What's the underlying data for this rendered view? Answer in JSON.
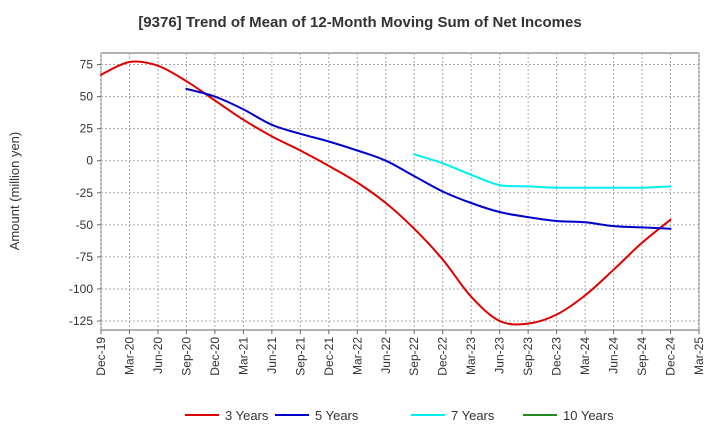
{
  "chart_data": {
    "type": "line",
    "title": "[9376]  Trend of Mean of 12-Month Moving Sum of Net Incomes",
    "ylabel": "Amount (million yen)",
    "xlabel": "",
    "ylim": [
      -132,
      84
    ],
    "yticks": [
      75,
      50,
      25,
      0,
      -25,
      -50,
      -75,
      -100,
      -125
    ],
    "xtick_labels": [
      "Dec-19",
      "Mar-20",
      "Jun-20",
      "Sep-20",
      "Dec-20",
      "Mar-21",
      "Jun-21",
      "Sep-21",
      "Dec-21",
      "Mar-22",
      "Jun-22",
      "Sep-22",
      "Dec-22",
      "Mar-23",
      "Jun-23",
      "Sep-23",
      "Dec-23",
      "Mar-24",
      "Jun-24",
      "Sep-24",
      "Dec-24",
      "Mar-25"
    ],
    "grid": true,
    "legend_position": "bottom",
    "series": [
      {
        "name": "3 Years",
        "color": "#dd0000",
        "x": [
          "Dec-19",
          "Mar-20",
          "Jun-20",
          "Sep-20",
          "Dec-20",
          "Mar-21",
          "Jun-21",
          "Sep-21",
          "Dec-21",
          "Mar-22",
          "Jun-22",
          "Sep-22",
          "Dec-22",
          "Mar-23",
          "Jun-23",
          "Sep-23",
          "Dec-23",
          "Mar-24",
          "Jun-24",
          "Sep-24",
          "Dec-24"
        ],
        "values": [
          67,
          77,
          74,
          62,
          47,
          32,
          19,
          8,
          -4,
          -17,
          -33,
          -53,
          -77,
          -106,
          -125,
          -127,
          -120,
          -105,
          -85,
          -64,
          -46
        ]
      },
      {
        "name": "5 Years",
        "color": "#0000cc",
        "x": [
          "Sep-20",
          "Dec-20",
          "Mar-21",
          "Jun-21",
          "Sep-21",
          "Dec-21",
          "Mar-22",
          "Jun-22",
          "Sep-22",
          "Dec-22",
          "Mar-23",
          "Jun-23",
          "Sep-23",
          "Dec-23",
          "Mar-24",
          "Jun-24",
          "Sep-24",
          "Dec-24"
        ],
        "values": [
          56,
          50,
          40,
          28,
          21,
          15,
          8,
          0,
          -12,
          -24,
          -33,
          -40,
          -44,
          -47,
          -48,
          -51,
          -52,
          -53
        ]
      },
      {
        "name": "7 Years",
        "color": "#00eeee",
        "x": [
          "Sep-22",
          "Dec-22",
          "Mar-23",
          "Jun-23",
          "Sep-23",
          "Dec-23",
          "Mar-24",
          "Jun-24",
          "Sep-24",
          "Dec-24"
        ],
        "values": [
          5,
          -2,
          -11,
          -19,
          -20,
          -21,
          -21,
          -21,
          -21,
          -20
        ]
      },
      {
        "name": "10 Years",
        "color": "#228822",
        "x": [],
        "values": []
      }
    ]
  }
}
